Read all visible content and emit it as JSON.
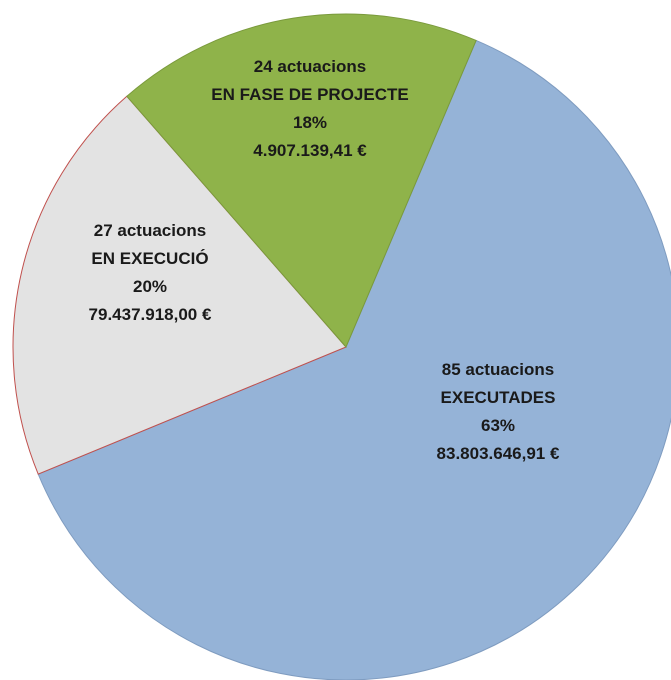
{
  "chart_data": {
    "type": "pie",
    "title": "",
    "slices": [
      {
        "count_label": "85 actuacions",
        "status": "EXECUTADES",
        "percent": 63,
        "percent_label": "63%",
        "amount": "83.803.646,91 €",
        "color": "#95b3d7",
        "stroke": "#7f9cc0"
      },
      {
        "count_label": "27 actuacions",
        "status": "EN EXECUCIÓ",
        "percent": 20,
        "percent_label": "20%",
        "amount": "79.437.918,00 €",
        "color": "#e3e3e3",
        "stroke": "#c0504d"
      },
      {
        "count_label": "24 actuacions",
        "status": "EN FASE DE PROJECTE",
        "percent": 18,
        "percent_label": "18%",
        "amount": "4.907.139,41 €",
        "color": "#8fb34a",
        "stroke": "#7a9a3c"
      }
    ]
  }
}
